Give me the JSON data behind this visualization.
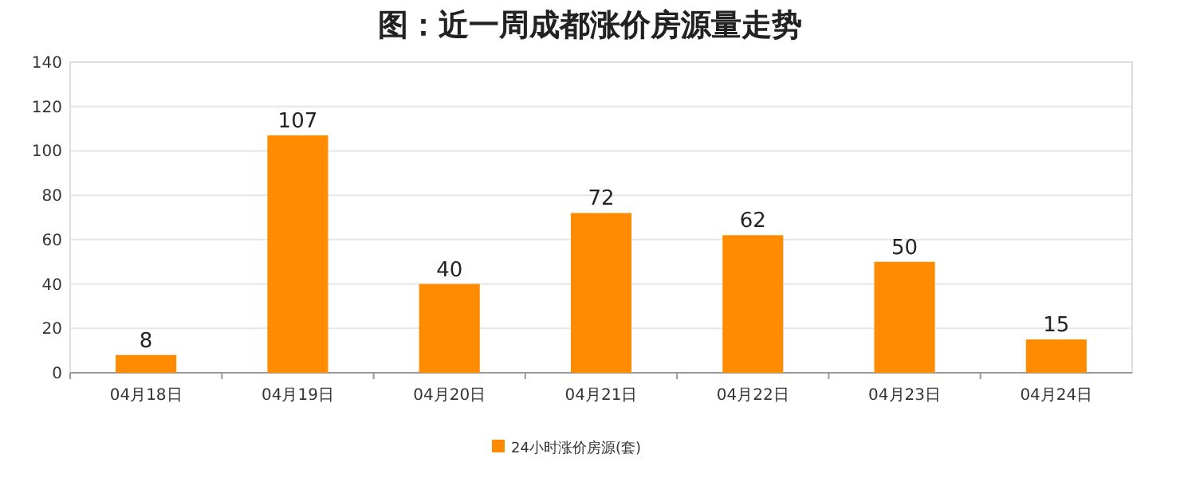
{
  "chart_data": {
    "type": "bar",
    "title": "图：近一周成都涨价房源量走势",
    "categories": [
      "04月18日",
      "04月19日",
      "04月20日",
      "04月21日",
      "04月22日",
      "04月23日",
      "04月24日"
    ],
    "series": [
      {
        "name": "24小时涨价房源(套)",
        "color": "#ff8c00",
        "values": [
          8,
          107,
          40,
          72,
          62,
          50,
          15
        ]
      }
    ],
    "ylim": [
      0,
      140
    ],
    "yticks": [
      0,
      20,
      40,
      60,
      80,
      100,
      120,
      140
    ],
    "grid": "y",
    "legend": "bottom",
    "data_labels": true
  }
}
